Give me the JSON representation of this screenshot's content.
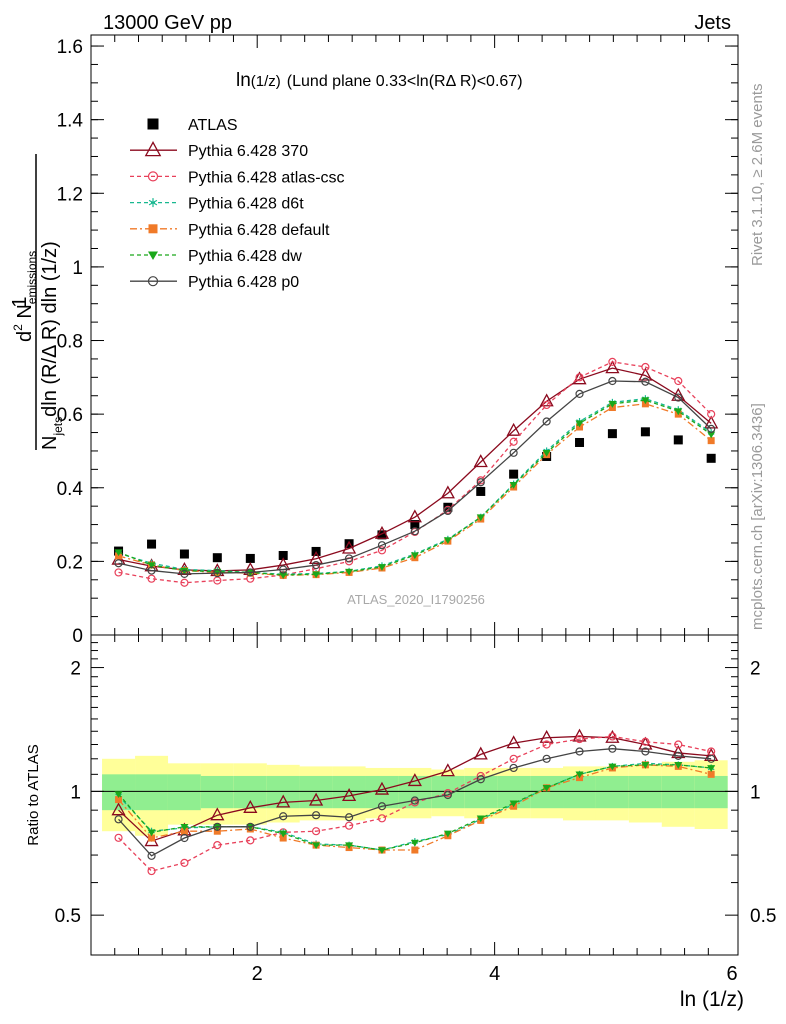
{
  "header": {
    "left": "13000 GeV pp",
    "right": "Jets"
  },
  "side_text": {
    "rivet": "Rivet 3.1.10, ≥ 2.6M events",
    "mcplots": "mcplots.cern.ch [arXiv:1306.3436]"
  },
  "watermark": "ATLAS_2020_I1790256",
  "colors": {
    "atlas": "#000000",
    "p370": "#8b0a1e",
    "csc": "#e8405a",
    "d6t": "#18b890",
    "default": "#f07a28",
    "dw": "#1aa81a",
    "p0": "#444444",
    "band_inner": "#90ee90",
    "band_outer": "#ffff99"
  },
  "chart_data": [
    {
      "type": "line",
      "title": "ln(1/z) (Lund plane 0.33<ln(RΔ R)<0.67)",
      "title_main": "ln",
      "title_sub": "(1/z)",
      "title_rest": "(Lund plane 0.33<ln(RΔ R)<0.67)",
      "ylabel": {
        "one": "1",
        "n": "N",
        "jets": "jets",
        "dln": "dln (R/Δ R) dln (1/z)",
        "d2": "d",
        "two": "2",
        "nem": " N",
        "emissions": "emissions"
      },
      "xlim": [
        0.6,
        6.05
      ],
      "ylim": [
        0,
        1.63
      ],
      "yticks": [
        0,
        0.2,
        0.4,
        0.6,
        0.8,
        1,
        1.2,
        1.4,
        1.6
      ],
      "ytick_labels": [
        "0",
        "0.2",
        "0.4",
        "0.6",
        "0.8",
        "1",
        "1.2",
        "1.4",
        "1.6"
      ],
      "legend_position": "top-left",
      "x": [
        0.832,
        1.11,
        1.387,
        1.664,
        1.942,
        2.219,
        2.496,
        2.774,
        3.051,
        3.328,
        3.606,
        3.883,
        4.16,
        4.438,
        4.715,
        4.992,
        5.27,
        5.547,
        5.824
      ],
      "series": [
        {
          "name": "ATLAS",
          "key": "atlas",
          "values": [
            0.228,
            0.247,
            0.22,
            0.21,
            0.208,
            0.216,
            0.227,
            0.248,
            0.272,
            0.3,
            0.347,
            0.39,
            0.437,
            0.485,
            0.523,
            0.547,
            0.552,
            0.53,
            0.48
          ]
        },
        {
          "name": "Pythia 6.428 370",
          "key": "p370",
          "values": [
            0.205,
            0.187,
            0.177,
            0.174,
            0.177,
            0.19,
            0.207,
            0.235,
            0.275,
            0.32,
            0.385,
            0.47,
            0.555,
            0.635,
            0.695,
            0.725,
            0.705,
            0.65,
            0.575
          ]
        },
        {
          "name": "Pythia 6.428 atlas-csc",
          "key": "csc",
          "values": [
            0.17,
            0.153,
            0.142,
            0.148,
            0.153,
            0.163,
            0.18,
            0.2,
            0.23,
            0.28,
            0.34,
            0.42,
            0.525,
            0.625,
            0.7,
            0.742,
            0.728,
            0.69,
            0.6
          ]
        },
        {
          "name": "Pythia 6.428 d6t",
          "key": "d6t",
          "values": [
            0.222,
            0.195,
            0.178,
            0.175,
            0.17,
            0.165,
            0.167,
            0.173,
            0.188,
            0.22,
            0.26,
            0.32,
            0.41,
            0.5,
            0.58,
            0.632,
            0.642,
            0.612,
            0.55
          ]
        },
        {
          "name": "Pythia 6.428 default",
          "key": "default",
          "values": [
            0.215,
            0.19,
            0.175,
            0.17,
            0.168,
            0.162,
            0.164,
            0.17,
            0.182,
            0.21,
            0.255,
            0.315,
            0.402,
            0.49,
            0.565,
            0.618,
            0.628,
            0.6,
            0.528
          ]
        },
        {
          "name": "Pythia 6.428 dw",
          "key": "dw",
          "values": [
            0.225,
            0.19,
            0.175,
            0.172,
            0.17,
            0.163,
            0.165,
            0.172,
            0.185,
            0.217,
            0.258,
            0.32,
            0.408,
            0.495,
            0.575,
            0.628,
            0.638,
            0.608,
            0.545
          ]
        },
        {
          "name": "Pythia 6.428 p0",
          "key": "p0",
          "values": [
            0.195,
            0.175,
            0.166,
            0.168,
            0.17,
            0.178,
            0.19,
            0.208,
            0.244,
            0.282,
            0.337,
            0.415,
            0.495,
            0.58,
            0.655,
            0.69,
            0.688,
            0.645,
            0.56
          ]
        }
      ]
    },
    {
      "type": "line",
      "ylabel": "Ratio to ATLAS",
      "xlabel": "ln (1/z)",
      "xlim": [
        0.6,
        6.05
      ],
      "ylim": [
        0.4,
        2.4
      ],
      "log_scale_y": true,
      "yticks": [
        0.5,
        1,
        2
      ],
      "ytick_labels": [
        "0.5",
        "1",
        "2"
      ],
      "xticks": [
        2,
        4,
        6
      ],
      "xtick_labels": [
        "2",
        "4",
        "6"
      ],
      "x": [
        0.832,
        1.11,
        1.387,
        1.664,
        1.942,
        2.219,
        2.496,
        2.774,
        3.051,
        3.328,
        3.606,
        3.883,
        4.16,
        4.438,
        4.715,
        4.992,
        5.27,
        5.547,
        5.824
      ],
      "band_inner": [
        0.1,
        0.1,
        0.1,
        0.09,
        0.09,
        0.09,
        0.09,
        0.09,
        0.09,
        0.09,
        0.09,
        0.09,
        0.09,
        0.09,
        0.09,
        0.09,
        0.09,
        0.09,
        0.09
      ],
      "band_outer": [
        0.2,
        0.22,
        0.17,
        0.17,
        0.17,
        0.16,
        0.15,
        0.15,
        0.14,
        0.14,
        0.13,
        0.14,
        0.14,
        0.14,
        0.15,
        0.15,
        0.16,
        0.18,
        0.19
      ],
      "series": [
        {
          "name": "Pythia 6.428 370",
          "key": "p370",
          "values": [
            0.9,
            0.757,
            0.804,
            0.875,
            0.912,
            0.94,
            0.95,
            0.975,
            1.01,
            1.06,
            1.12,
            1.23,
            1.31,
            1.35,
            1.36,
            1.35,
            1.3,
            1.24,
            1.22
          ]
        },
        {
          "name": "Pythia 6.428 atlas-csc",
          "key": "csc",
          "values": [
            0.771,
            0.64,
            0.67,
            0.74,
            0.76,
            0.795,
            0.8,
            0.825,
            0.86,
            0.94,
            0.99,
            1.09,
            1.2,
            1.3,
            1.34,
            1.36,
            1.32,
            1.3,
            1.25
          ]
        },
        {
          "name": "Pythia 6.428 d6t",
          "key": "d6t",
          "values": [
            0.975,
            0.8,
            0.815,
            0.82,
            0.82,
            0.795,
            0.745,
            0.74,
            0.72,
            0.755,
            0.785,
            0.855,
            0.93,
            1.02,
            1.1,
            1.15,
            1.17,
            1.16,
            1.14
          ]
        },
        {
          "name": "Pythia 6.428 default",
          "key": "default",
          "values": [
            0.955,
            0.77,
            0.8,
            0.8,
            0.81,
            0.77,
            0.74,
            0.73,
            0.72,
            0.72,
            0.78,
            0.85,
            0.92,
            1.02,
            1.08,
            1.14,
            1.16,
            1.15,
            1.1
          ]
        },
        {
          "name": "Pythia 6.428 dw",
          "key": "dw",
          "values": [
            0.985,
            0.795,
            0.82,
            0.82,
            0.82,
            0.79,
            0.74,
            0.74,
            0.72,
            0.75,
            0.79,
            0.86,
            0.935,
            1.02,
            1.1,
            1.15,
            1.16,
            1.16,
            1.14
          ]
        },
        {
          "name": "Pythia 6.428 p0",
          "key": "p0",
          "values": [
            0.855,
            0.697,
            0.77,
            0.82,
            0.82,
            0.87,
            0.875,
            0.865,
            0.92,
            0.95,
            0.98,
            1.07,
            1.14,
            1.2,
            1.25,
            1.27,
            1.25,
            1.22,
            1.2
          ]
        }
      ]
    }
  ]
}
